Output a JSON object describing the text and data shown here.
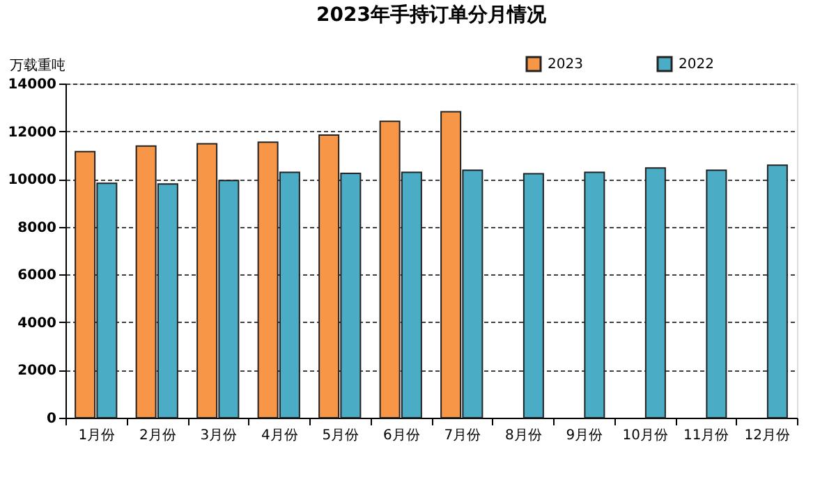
{
  "chart_data": {
    "type": "bar",
    "title": "2023年手持订单分月情况",
    "ylabel": "万载重吨",
    "categories": [
      "1月份",
      "2月份",
      "3月份",
      "4月份",
      "5月份",
      "6月份",
      "7月份",
      "8月份",
      "9月份",
      "10月份",
      "11月份",
      "12月份"
    ],
    "series": [
      {
        "name": "2023",
        "color": "#f79646",
        "values": [
          11150,
          11380,
          11480,
          11540,
          11840,
          12420,
          12820,
          null,
          null,
          null,
          null,
          null
        ]
      },
      {
        "name": "2022",
        "color": "#4bacc6",
        "values": [
          9820,
          9790,
          9940,
          10280,
          10240,
          10280,
          10370,
          10220,
          10280,
          10460,
          10370,
          10580
        ]
      }
    ],
    "ylim": [
      0,
      14000
    ],
    "yticks": [
      0,
      2000,
      4000,
      6000,
      8000,
      10000,
      12000,
      14000
    ],
    "grid": "y",
    "legend": "top right"
  }
}
